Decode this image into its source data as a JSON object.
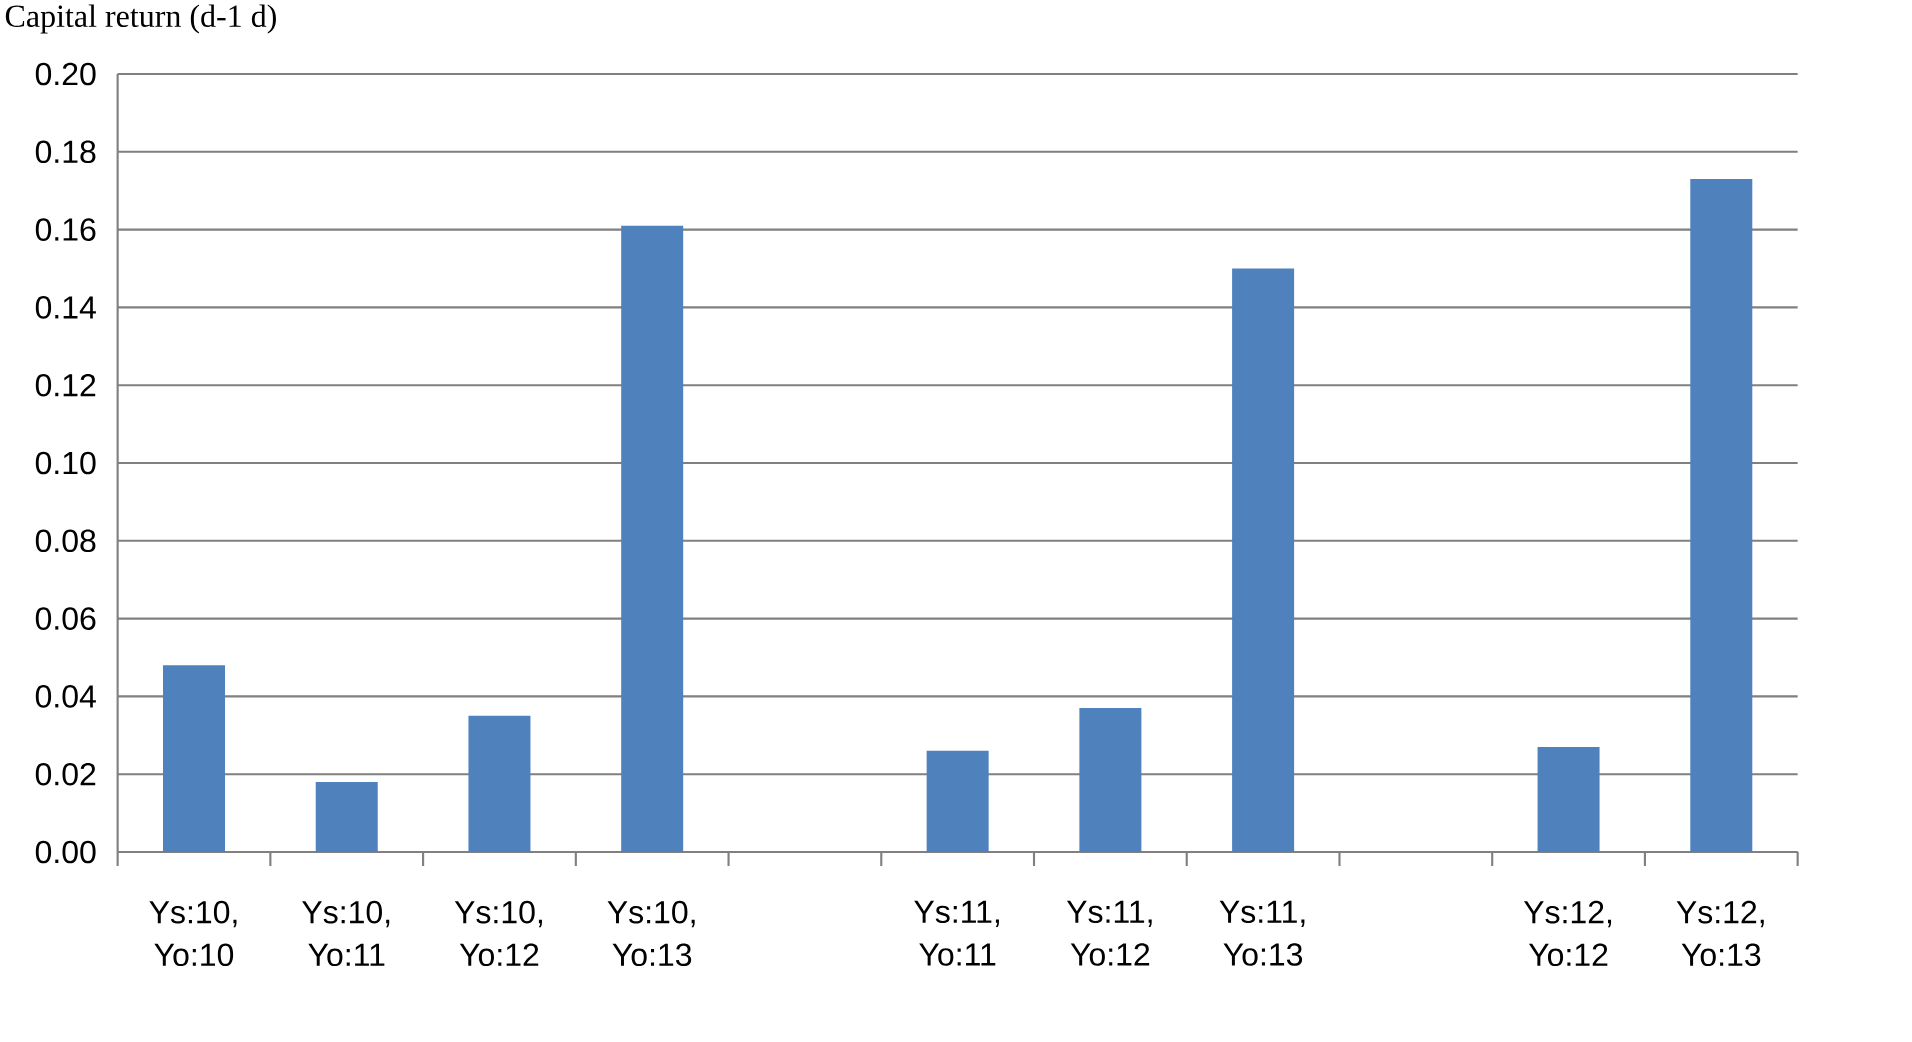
{
  "chart_data": {
    "type": "bar",
    "title": "Capital return (d-1 d)",
    "categories": [
      "Ys:10, Yo:10",
      "Ys:10, Yo:11",
      "Ys:10, Yo:12",
      "Ys:10, Yo:13",
      null,
      "Ys:11, Yo:11",
      "Ys:11, Yo:12",
      "Ys:11, Yo:13",
      null,
      "Ys:12, Yo:12",
      "Ys:12, Yo:13"
    ],
    "values": [
      0.048,
      0.018,
      0.035,
      0.161,
      null,
      0.026,
      0.037,
      0.15,
      null,
      0.027,
      0.173
    ],
    "color": "#4f81bd",
    "ylim": [
      0,
      0.2
    ],
    "yticks": [
      {
        "value": 0,
        "label": "0.00"
      },
      {
        "value": 0.02,
        "label": "0.02"
      },
      {
        "value": 0.04,
        "label": "0.04"
      },
      {
        "value": 0.06,
        "label": "0.06"
      },
      {
        "value": 0.08,
        "label": "0.08"
      },
      {
        "value": 0.1,
        "label": "0.10"
      },
      {
        "value": 0.12,
        "label": "0.12"
      },
      {
        "value": 0.14,
        "label": "0.14"
      },
      {
        "value": 0.16,
        "label": "0.16"
      },
      {
        "value": 0.18,
        "label": "0.18"
      },
      {
        "value": 0.2,
        "label": "0.20"
      }
    ],
    "grid": "y"
  }
}
